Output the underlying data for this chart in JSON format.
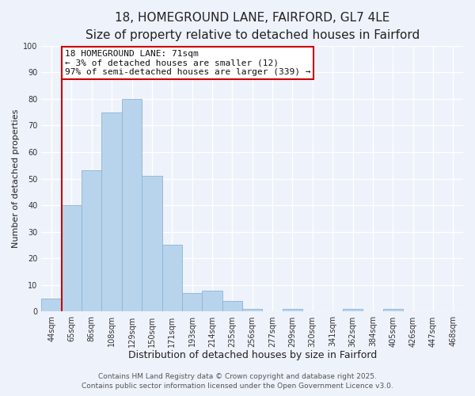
{
  "title": "18, HOMEGROUND LANE, FAIRFORD, GL7 4LE",
  "subtitle": "Size of property relative to detached houses in Fairford",
  "xlabel": "Distribution of detached houses by size in Fairford",
  "ylabel": "Number of detached properties",
  "bar_color": "#b8d4ec",
  "bar_edge_color": "#8ab4d8",
  "background_color": "#eef2fa",
  "grid_color": "#ffffff",
  "categories": [
    "44sqm",
    "65sqm",
    "86sqm",
    "108sqm",
    "129sqm",
    "150sqm",
    "171sqm",
    "193sqm",
    "214sqm",
    "235sqm",
    "256sqm",
    "277sqm",
    "299sqm",
    "320sqm",
    "341sqm",
    "362sqm",
    "384sqm",
    "405sqm",
    "426sqm",
    "447sqm",
    "468sqm"
  ],
  "values": [
    5,
    40,
    53,
    75,
    80,
    51,
    25,
    7,
    8,
    4,
    1,
    0,
    1,
    0,
    0,
    1,
    0,
    1,
    0,
    0,
    0
  ],
  "ylim": [
    0,
    100
  ],
  "yticks": [
    0,
    10,
    20,
    30,
    40,
    50,
    60,
    70,
    80,
    90,
    100
  ],
  "vline_x_index": 1,
  "vline_color": "#cc0000",
  "annotation_text": "18 HOMEGROUND LANE: 71sqm\n← 3% of detached houses are smaller (12)\n97% of semi-detached houses are larger (339) →",
  "annotation_box_color": "#ffffff",
  "annotation_box_edge": "#cc0000",
  "footer_line1": "Contains HM Land Registry data © Crown copyright and database right 2025.",
  "footer_line2": "Contains public sector information licensed under the Open Government Licence v3.0.",
  "title_fontsize": 11,
  "subtitle_fontsize": 9,
  "xlabel_fontsize": 9,
  "ylabel_fontsize": 8,
  "tick_fontsize": 7,
  "annotation_fontsize": 8,
  "footer_fontsize": 6.5
}
